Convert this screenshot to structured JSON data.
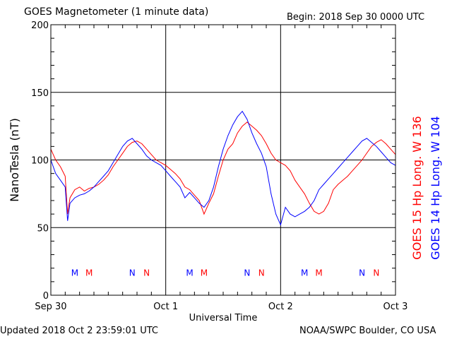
{
  "header": {
    "title": "GOES Magnetometer (1 minute data)",
    "begin": "Begin:  2018 Sep 30 0000 UTC"
  },
  "footer": {
    "updated": "Updated 2018 Oct  2 23:59:01 UTC",
    "credit": "NOAA/SWPC Boulder, CO USA"
  },
  "colors": {
    "goes15": "#ff0000",
    "goes14": "#0000ff",
    "axes": "#000000"
  },
  "chart_data": {
    "type": "line",
    "title": "GOES Magnetometer (1 minute data)",
    "xlabel": "Universal Time",
    "ylabel": "NanoTesla (nT)",
    "ylim": [
      0,
      200
    ],
    "xlim": [
      0,
      72
    ],
    "x_unit": "hours since 2018 Sep 30 0000 UTC",
    "yticks": [
      0,
      50,
      100,
      150,
      200
    ],
    "xticks": [
      {
        "x": 0,
        "label": "Sep 30"
      },
      {
        "x": 24,
        "label": "Oct 1"
      },
      {
        "x": 48,
        "label": "Oct 2"
      },
      {
        "x": 72,
        "label": "Oct 3"
      }
    ],
    "grid": true,
    "series": [
      {
        "name": "GOES 15 Hp  Long. W 136",
        "color": "#ff0000",
        "x": [
          0,
          1,
          2,
          3,
          3.5,
          4,
          5,
          6,
          7,
          8,
          9,
          10,
          11,
          12,
          13,
          14,
          15,
          16,
          17,
          18,
          19,
          20,
          21,
          22,
          23,
          24,
          25,
          26,
          27,
          28,
          29,
          30,
          31,
          32,
          33,
          34,
          35,
          36,
          37,
          38,
          39,
          40,
          41,
          42,
          43,
          44,
          45,
          46,
          47,
          48,
          49,
          50,
          51,
          52,
          53,
          54,
          55,
          56,
          57,
          58,
          59,
          60,
          61,
          62,
          63,
          64,
          65,
          66,
          67,
          68,
          69,
          70,
          71,
          72
        ],
        "y": [
          108,
          100,
          95,
          88,
          60,
          72,
          78,
          80,
          77,
          79,
          80,
          82,
          85,
          89,
          95,
          100,
          105,
          110,
          113,
          114,
          112,
          108,
          104,
          100,
          98,
          96,
          93,
          90,
          86,
          80,
          78,
          74,
          70,
          60,
          68,
          75,
          88,
          100,
          108,
          112,
          120,
          125,
          128,
          125,
          122,
          118,
          112,
          105,
          100,
          98,
          96,
          92,
          85,
          80,
          75,
          68,
          62,
          60,
          62,
          68,
          78,
          82,
          85,
          88,
          92,
          96,
          100,
          105,
          110,
          113,
          115,
          112,
          108,
          104
        ]
      },
      {
        "name": "GOES 14 Hp  Long. W 104",
        "color": "#0000ff",
        "x": [
          0,
          1,
          2,
          3,
          3.5,
          4,
          5,
          6,
          7,
          8,
          9,
          10,
          11,
          12,
          13,
          14,
          15,
          16,
          17,
          18,
          19,
          20,
          21,
          22,
          23,
          24,
          25,
          26,
          27,
          28,
          29,
          30,
          31,
          32,
          33,
          34,
          35,
          36,
          37,
          38,
          39,
          40,
          41,
          42,
          43,
          44,
          45,
          46,
          47,
          48,
          49,
          50,
          51,
          52,
          53,
          54,
          55,
          56,
          57,
          58,
          59,
          60,
          61,
          62,
          63,
          64,
          65,
          66,
          67,
          68,
          69,
          70,
          71,
          72
        ],
        "y": [
          100,
          90,
          85,
          80,
          55,
          68,
          72,
          74,
          75,
          77,
          80,
          84,
          88,
          92,
          98,
          104,
          110,
          114,
          116,
          112,
          108,
          103,
          100,
          98,
          96,
          92,
          88,
          84,
          80,
          72,
          76,
          72,
          68,
          65,
          70,
          80,
          95,
          108,
          118,
          126,
          132,
          136,
          130,
          120,
          112,
          105,
          95,
          75,
          60,
          52,
          65,
          60,
          58,
          60,
          62,
          65,
          70,
          78,
          82,
          86,
          90,
          94,
          98,
          102,
          106,
          110,
          114,
          116,
          113,
          110,
          106,
          102,
          98,
          96
        ]
      }
    ],
    "annotations": [
      {
        "x": 5,
        "y": 17,
        "text": "M",
        "color": "#0000ff"
      },
      {
        "x": 8,
        "y": 17,
        "text": "M",
        "color": "#ff0000"
      },
      {
        "x": 17,
        "y": 17,
        "text": "N",
        "color": "#0000ff"
      },
      {
        "x": 20,
        "y": 17,
        "text": "N",
        "color": "#ff0000"
      },
      {
        "x": 29,
        "y": 17,
        "text": "M",
        "color": "#0000ff"
      },
      {
        "x": 32,
        "y": 17,
        "text": "M",
        "color": "#ff0000"
      },
      {
        "x": 41,
        "y": 17,
        "text": "N",
        "color": "#0000ff"
      },
      {
        "x": 44,
        "y": 17,
        "text": "N",
        "color": "#ff0000"
      },
      {
        "x": 53,
        "y": 17,
        "text": "M",
        "color": "#0000ff"
      },
      {
        "x": 56,
        "y": 17,
        "text": "M",
        "color": "#ff0000"
      },
      {
        "x": 65,
        "y": 17,
        "text": "N",
        "color": "#0000ff"
      },
      {
        "x": 68,
        "y": 17,
        "text": "N",
        "color": "#ff0000"
      }
    ]
  }
}
